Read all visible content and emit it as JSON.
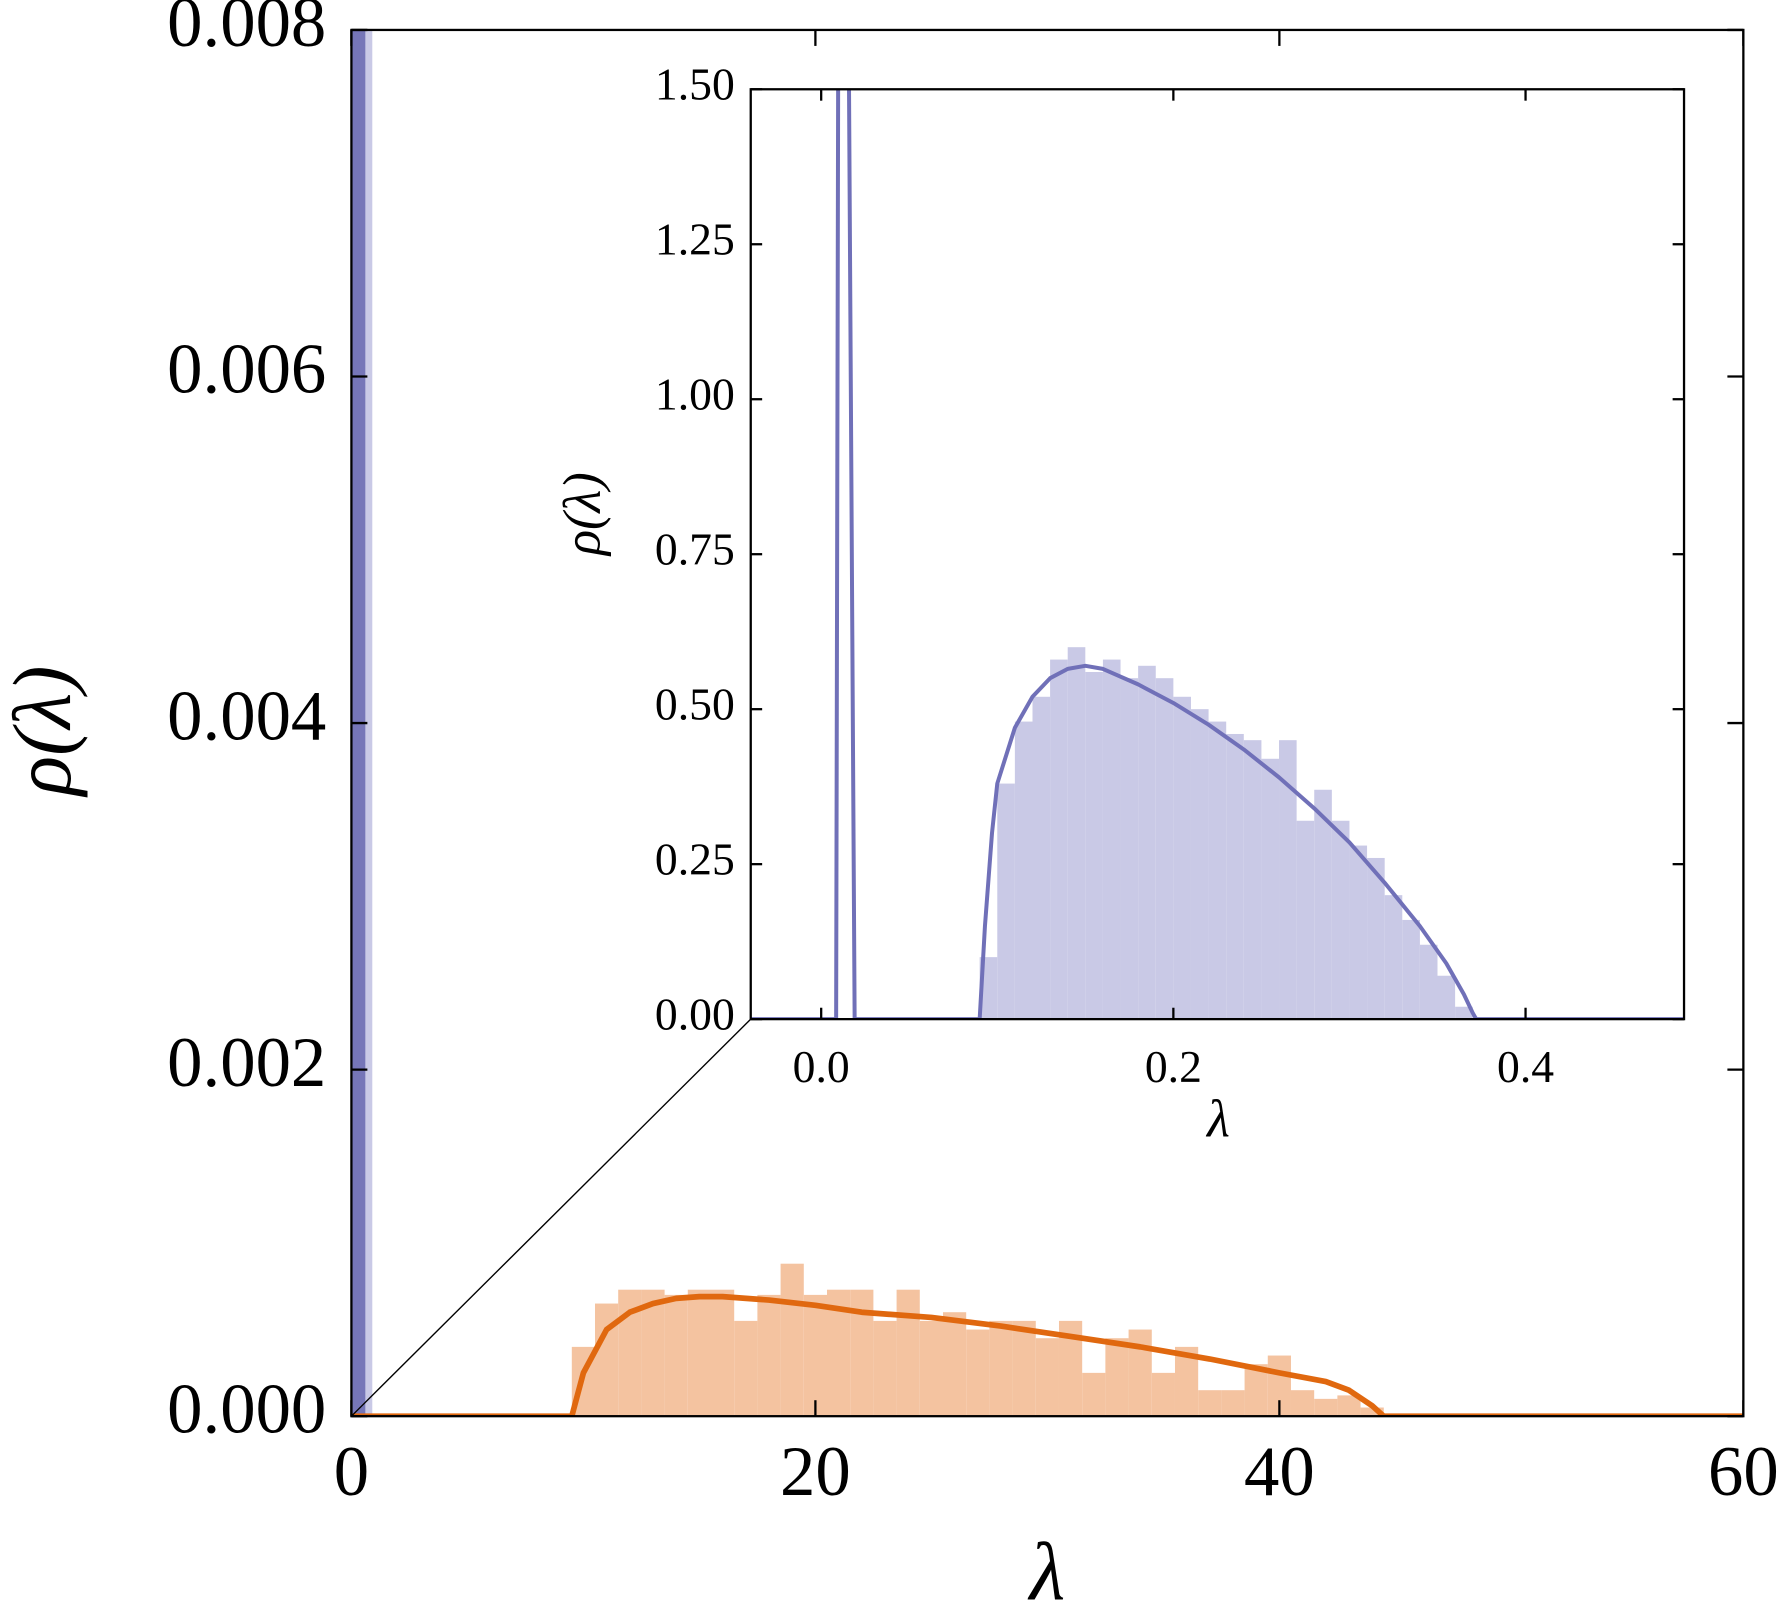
{
  "chart_data": [
    {
      "type": "histogram",
      "x_label": "λ",
      "y_label": "ρ(λ)",
      "xlim": [
        0,
        60
      ],
      "ylim": [
        0,
        0.008
      ],
      "xticks": [
        0,
        20,
        40,
        60
      ],
      "yticks": [
        {
          "value": 0,
          "label": "0.000"
        },
        {
          "value": 0.002,
          "label": "0.002"
        },
        {
          "value": 0.004,
          "label": "0.004"
        },
        {
          "value": 0.006,
          "label": "0.006"
        },
        {
          "value": 0.008,
          "label": "0.008"
        }
      ],
      "histograms": [
        {
          "color": "#f4c3a0",
          "bins": [
            9.5,
            10.5,
            11.5,
            12.5,
            13.5,
            14.5,
            15.5,
            16.5,
            17.5,
            18.5,
            19.5,
            20.5,
            21.5,
            22.5,
            23.5,
            24.5,
            25.5,
            26.5,
            27.5,
            28.5,
            29.5,
            30.5,
            31.5,
            32.5,
            33.5,
            34.5,
            35.5,
            36.5,
            37.5,
            38.5,
            39.5,
            40.5,
            41.5,
            42.5,
            43.5,
            44.5
          ],
          "values": [
            0.0004,
            0.00065,
            0.00073,
            0.00073,
            0.0007,
            0.00073,
            0.00073,
            0.00055,
            0.0007,
            0.00088,
            0.0007,
            0.00073,
            0.00073,
            0.00055,
            0.00073,
            0.00055,
            0.0006,
            0.0005,
            0.00055,
            0.00055,
            0.00045,
            0.00055,
            0.00025,
            0.00045,
            0.0005,
            0.00025,
            0.0004,
            0.00015,
            0.00015,
            0.0003,
            0.00035,
            0.00015,
            0.0001,
            0.00012,
            5e-05
          ]
        },
        {
          "color": "#c9c9e6",
          "bins": [
            0,
            0.9
          ],
          "values": [
            0.01
          ]
        },
        {
          "color": "#7676b8",
          "bins": [
            0,
            0.6
          ],
          "values": [
            0.01
          ]
        }
      ],
      "lines": [
        {
          "color": "#e0680f",
          "x": [
            0,
            9.5,
            9.7,
            10,
            11,
            12,
            13,
            14,
            15,
            16,
            18,
            20,
            22,
            25,
            28,
            31,
            34,
            37,
            40,
            42,
            43,
            44,
            44.5,
            60
          ],
          "y": [
            0,
            0,
            0.0001,
            0.00025,
            0.0005,
            0.0006,
            0.00065,
            0.00068,
            0.00069,
            0.00069,
            0.00067,
            0.00064,
            0.0006,
            0.00057,
            0.00052,
            0.00046,
            0.0004,
            0.00033,
            0.00025,
            0.0002,
            0.00015,
            6e-05,
            0,
            0
          ]
        }
      ]
    },
    {
      "type": "histogram",
      "x_label": "λ",
      "y_label": "ρ(λ)",
      "xlim": [
        -0.04,
        0.49
      ],
      "ylim": [
        0,
        1.5
      ],
      "xticks": [
        {
          "value": 0,
          "label": "0.0"
        },
        {
          "value": 0.2,
          "label": "0.2"
        },
        {
          "value": 0.4,
          "label": "0.4"
        }
      ],
      "yticks": [
        {
          "value": 0,
          "label": "0.00"
        },
        {
          "value": 0.25,
          "label": "0.25"
        },
        {
          "value": 0.5,
          "label": "0.50"
        },
        {
          "value": 0.75,
          "label": "0.75"
        },
        {
          "value": 1,
          "label": "1.00"
        },
        {
          "value": 1.25,
          "label": "1.25"
        },
        {
          "value": 1.5,
          "label": "1.50"
        }
      ],
      "histograms": [
        {
          "color": "#c9c9e6",
          "bins": [
            0.09,
            0.1,
            0.11,
            0.12,
            0.13,
            0.14,
            0.15,
            0.16,
            0.17,
            0.18,
            0.19,
            0.2,
            0.21,
            0.22,
            0.23,
            0.24,
            0.25,
            0.26,
            0.27,
            0.28,
            0.29,
            0.3,
            0.31,
            0.32,
            0.33,
            0.34,
            0.35,
            0.36,
            0.37
          ],
          "values": [
            0.1,
            0.38,
            0.48,
            0.52,
            0.58,
            0.6,
            0.56,
            0.58,
            0.55,
            0.57,
            0.55,
            0.52,
            0.5,
            0.48,
            0.46,
            0.45,
            0.42,
            0.45,
            0.32,
            0.37,
            0.32,
            0.28,
            0.26,
            0.2,
            0.16,
            0.12,
            0.07,
            0.02
          ]
        }
      ],
      "lines": [
        {
          "color": "#7070b8",
          "x": [
            -0.04,
            0.0085,
            0.0097,
            0.0156,
            0.019,
            0.09,
            0.093,
            0.097,
            0.1,
            0.11,
            0.12,
            0.13,
            0.14,
            0.15,
            0.16,
            0.18,
            0.2,
            0.22,
            0.24,
            0.26,
            0.28,
            0.3,
            0.32,
            0.34,
            0.355,
            0.365,
            0.37,
            0.372,
            0.49
          ],
          "y": [
            0,
            0,
            1.6,
            1.6,
            0,
            0,
            0.15,
            0.3,
            0.38,
            0.47,
            0.52,
            0.55,
            0.565,
            0.57,
            0.565,
            0.54,
            0.51,
            0.475,
            0.435,
            0.39,
            0.34,
            0.285,
            0.22,
            0.15,
            0.09,
            0.04,
            0.01,
            0,
            0
          ]
        }
      ]
    }
  ]
}
